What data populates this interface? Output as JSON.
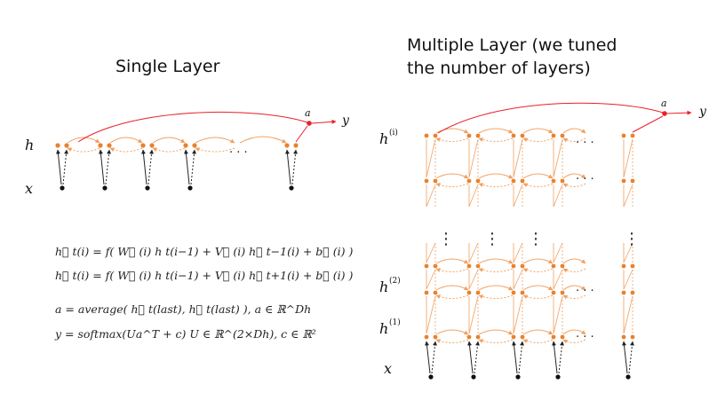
{
  "left_panel": {
    "title": "Single Layer",
    "label_h": "h",
    "label_x": "x",
    "label_a": "a",
    "label_y": "y",
    "ellipsis": "· · ·",
    "equations": [
      "h⃗ t(i) = f( W⃗ (i) h t(i−1) + V⃗ (i) h⃗ t−1(i) + b⃗ (i) )",
      "h⃖ t(i) = f( W⃖ (i) h t(i−1) + V⃖ (i) h⃖ t+1(i) + b⃖ (i) )",
      "a = average( h⃗ t(last), h⃖ t(last) ),     a ∈ ℝ^Dh",
      "y = softmax(Ua^T + c)          U ∈ ℝ^(2×Dh),     c ∈ ℝ²"
    ]
  },
  "right_panel": {
    "title_line1": "Multiple Layer (we tuned",
    "title_line2": "the number of layers)",
    "label_hi": "h",
    "label_hi_sup": "(i)",
    "label_h2": "h",
    "label_h2_sup": "(2)",
    "label_h1": "h",
    "label_h1_sup": "(1)",
    "label_x": "x",
    "label_a": "a",
    "label_y": "y",
    "ellipsis": "· · ·",
    "vertical_ellipsis": "⋮"
  },
  "colors": {
    "node_orange": "#e8822e",
    "arrow_orange": "#f0a060",
    "output_red": "#e8202a",
    "text": "#111111"
  }
}
